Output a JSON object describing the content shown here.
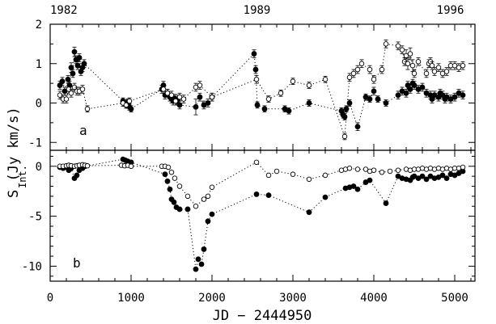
{
  "chart_data": {
    "type": "scatter",
    "top_axis_labels": [
      "1982",
      "1989",
      "1996"
    ],
    "top_axis_x": [
      0,
      2555,
      5114
    ],
    "xlabel": "JD − 2444950",
    "x_ticks": [
      0,
      1000,
      2000,
      3000,
      4000,
      5000
    ],
    "xlim": [
      0,
      5250
    ],
    "shared_ylabel": "S  (Jy km/s)",
    "shared_ylabel_subscript": "Int.",
    "panels": [
      {
        "id": "a",
        "label": "a",
        "ylim": [
          -1.2,
          2.0
        ],
        "y_ticks": [
          -1,
          0,
          1,
          2
        ],
        "series": [
          {
            "marker": "filled",
            "x": [
              120,
              150,
              180,
              220,
              240,
              260,
              280,
              300,
              320,
              340,
              360,
              380,
              400,
              420,
              900,
              920,
              940,
              960,
              980,
              1000,
              1380,
              1400,
              1420,
              1450,
              1480,
              1500,
              1520,
              1540,
              1560,
              1580,
              1600,
              1800,
              1850,
              1900,
              1950,
              2000,
              2520,
              2540,
              2560,
              2650,
              2900,
              2950,
              3200,
              3600,
              3620,
              3640,
              3660,
              3700,
              3800,
              3900,
              3950,
              4000,
              4050,
              4150,
              4300,
              4350,
              4400,
              4420,
              4450,
              4480,
              4500,
              4550,
              4600,
              4650,
              4700,
              4720,
              4750,
              4800,
              4820,
              4850,
              4880,
              4900,
              4950,
              5000,
              5050,
              5100
            ],
            "y": [
              0.45,
              0.55,
              0.3,
              0.6,
              0.45,
              0.9,
              0.75,
              1.3,
              1.1,
              0.95,
              1.15,
              0.8,
              0.9,
              1.0,
              0.05,
              0.0,
              -0.05,
              0.02,
              -0.1,
              -0.15,
              0.35,
              0.45,
              0.2,
              0.25,
              0.15,
              0.1,
              0.05,
              0.12,
              0.05,
              0.1,
              -0.05,
              -0.1,
              0.15,
              -0.05,
              0.0,
              0.15,
              1.25,
              0.85,
              -0.05,
              -0.15,
              -0.15,
              -0.2,
              0.0,
              -0.2,
              -0.3,
              -0.35,
              -0.15,
              0.0,
              -0.6,
              0.15,
              0.1,
              0.3,
              0.1,
              0.0,
              0.2,
              0.3,
              0.25,
              0.45,
              0.35,
              0.5,
              0.45,
              0.35,
              0.4,
              0.25,
              0.2,
              0.1,
              0.2,
              0.15,
              0.25,
              0.2,
              0.1,
              0.15,
              0.1,
              0.15,
              0.25,
              0.2
            ],
            "yerr": [
              0.1,
              0.1,
              0.1,
              0.1,
              0.1,
              0.12,
              0.1,
              0.12,
              0.1,
              0.1,
              0.1,
              0.1,
              0.1,
              0.1,
              0.08,
              0.08,
              0.08,
              0.08,
              0.08,
              0.08,
              0.1,
              0.1,
              0.1,
              0.1,
              0.1,
              0.1,
              0.1,
              0.1,
              0.1,
              0.1,
              0.1,
              0.2,
              0.1,
              0.1,
              0.1,
              0.1,
              0.1,
              0.1,
              0.08,
              0.08,
              0.08,
              0.08,
              0.08,
              0.08,
              0.08,
              0.08,
              0.08,
              0.08,
              0.1,
              0.08,
              0.08,
              0.1,
              0.08,
              0.08,
              0.1,
              0.1,
              0.1,
              0.1,
              0.1,
              0.1,
              0.1,
              0.1,
              0.1,
              0.1,
              0.1,
              0.1,
              0.1,
              0.1,
              0.1,
              0.1,
              0.1,
              0.1,
              0.1,
              0.1,
              0.1,
              0.1
            ]
          },
          {
            "marker": "open",
            "x": [
              120,
              160,
              200,
              230,
              260,
              300,
              330,
              360,
              400,
              460,
              900,
              940,
              980,
              1400,
              1450,
              1500,
              1550,
              1600,
              1650,
              1800,
              1850,
              2000,
              2550,
              2700,
              2850,
              3000,
              3200,
              3400,
              3640,
              3700,
              3750,
              3800,
              3850,
              3950,
              4000,
              4100,
              4150,
              4300,
              4350,
              4380,
              4400,
              4420,
              4450,
              4480,
              4500,
              4550,
              4650,
              4680,
              4700,
              4720,
              4750,
              4800,
              4850,
              4900,
              4950,
              5000,
              5050,
              5100
            ],
            "y": [
              0.2,
              0.1,
              0.1,
              0.35,
              0.25,
              0.4,
              0.3,
              0.3,
              0.35,
              -0.15,
              0.0,
              -0.05,
              0.05,
              0.35,
              0.25,
              0.2,
              0.05,
              0.15,
              0.1,
              0.4,
              0.45,
              0.15,
              0.6,
              0.1,
              0.25,
              0.55,
              0.45,
              0.6,
              -0.85,
              0.65,
              0.75,
              0.85,
              1.0,
              0.85,
              0.6,
              0.85,
              1.5,
              1.45,
              1.35,
              1.05,
              1.2,
              1.0,
              1.25,
              0.95,
              0.75,
              1.05,
              0.75,
              1.0,
              1.05,
              0.95,
              0.8,
              0.9,
              0.75,
              0.8,
              0.95,
              0.95,
              0.9,
              0.95
            ],
            "yerr": [
              0.1,
              0.1,
              0.1,
              0.1,
              0.1,
              0.1,
              0.1,
              0.1,
              0.1,
              0.08,
              0.08,
              0.08,
              0.08,
              0.1,
              0.1,
              0.1,
              0.1,
              0.1,
              0.1,
              0.1,
              0.1,
              0.1,
              0.1,
              0.08,
              0.08,
              0.08,
              0.08,
              0.08,
              0.08,
              0.1,
              0.1,
              0.1,
              0.1,
              0.1,
              0.1,
              0.1,
              0.1,
              0.1,
              0.1,
              0.1,
              0.15,
              0.15,
              0.15,
              0.15,
              0.1,
              0.1,
              0.1,
              0.1,
              0.1,
              0.1,
              0.1,
              0.1,
              0.1,
              0.1,
              0.1,
              0.1,
              0.1,
              0.1
            ]
          }
        ]
      },
      {
        "id": "b",
        "label": "b",
        "ylim": [
          -11.5,
          1.6
        ],
        "y_ticks": [
          -10,
          -5,
          0
        ],
        "series": [
          {
            "marker": "filled",
            "x": [
              120,
              160,
              200,
              230,
              260,
              300,
              330,
              360,
              400,
              430,
              900,
              930,
              960,
              1000,
              1420,
              1450,
              1480,
              1500,
              1530,
              1560,
              1600,
              1700,
              1800,
              1830,
              1870,
              1900,
              1950,
              2000,
              2550,
              2700,
              3200,
              3400,
              3650,
              3700,
              3750,
              3800,
              3900,
              3950,
              4150,
              4300,
              4350,
              4400,
              4450,
              4480,
              4500,
              4550,
              4600,
              4650,
              4700,
              4750,
              4800,
              4850,
              4900,
              4950,
              5000,
              5050,
              5100
            ],
            "y": [
              -0.1,
              -0.2,
              -0.1,
              -0.4,
              -0.2,
              -1.2,
              -0.9,
              -0.4,
              -0.2,
              0.0,
              0.7,
              0.6,
              0.5,
              0.4,
              -0.8,
              -1.5,
              -2.3,
              -3.3,
              -3.6,
              -4.1,
              -4.3,
              -4.3,
              -10.3,
              -9.3,
              -9.8,
              -8.3,
              -5.5,
              -4.8,
              -2.8,
              -2.9,
              -4.6,
              -3.1,
              -2.2,
              -2.1,
              -2.0,
              -2.3,
              -1.6,
              -1.4,
              -3.7,
              -1.0,
              -1.2,
              -1.3,
              -1.4,
              -1.1,
              -1.0,
              -1.2,
              -1.0,
              -1.3,
              -1.0,
              -1.2,
              -1.1,
              -0.9,
              -1.2,
              -0.8,
              -0.9,
              -0.7,
              -0.5
            ]
          },
          {
            "marker": "open",
            "x": [
              120,
              160,
              200,
              230,
              260,
              300,
              330,
              360,
              400,
              430,
              460,
              880,
              920,
              960,
              1000,
              1380,
              1420,
              1460,
              1500,
              1540,
              1600,
              1700,
              1800,
              1900,
              1950,
              2000,
              2550,
              2700,
              2800,
              3000,
              3200,
              3400,
              3600,
              3650,
              3700,
              3800,
              3900,
              3950,
              4000,
              4100,
              4200,
              4300,
              4400,
              4450,
              4500,
              4550,
              4600,
              4650,
              4700,
              4750,
              4800,
              4850,
              4900,
              4950,
              5000,
              5050,
              5100
            ],
            "y": [
              0.0,
              0.0,
              0.05,
              0.1,
              0.05,
              0.0,
              0.05,
              0.1,
              0.15,
              0.1,
              0.05,
              0.1,
              0.05,
              0.1,
              0.0,
              0.0,
              0.0,
              -0.1,
              -0.6,
              -1.2,
              -2.0,
              -3.0,
              -4.0,
              -3.3,
              -3.0,
              -2.1,
              0.4,
              -0.9,
              -0.5,
              -0.8,
              -1.3,
              -0.9,
              -0.4,
              -0.3,
              -0.2,
              -0.3,
              -0.3,
              -0.5,
              -0.4,
              -0.6,
              -0.5,
              -0.4,
              -0.3,
              -0.4,
              -0.3,
              -0.3,
              -0.2,
              -0.3,
              -0.2,
              -0.3,
              -0.2,
              -0.3,
              -0.2,
              -0.3,
              -0.2,
              -0.2,
              -0.1
            ]
          }
        ]
      }
    ]
  }
}
